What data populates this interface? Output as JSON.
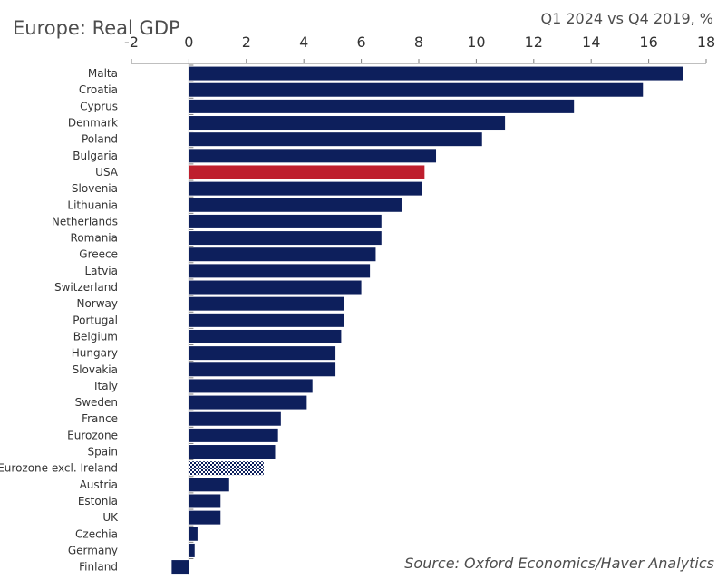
{
  "chart_data": {
    "type": "bar",
    "orientation": "horizontal",
    "title": "Europe: Real GDP",
    "subtitle": "Q1 2024 vs Q4 2019, %",
    "source": "Source: Oxford Economics/Haver Analytics",
    "xlim": [
      -2,
      18
    ],
    "xticks": [
      -2,
      0,
      2,
      4,
      6,
      8,
      10,
      12,
      14,
      16,
      18
    ],
    "xtick_labels": [
      "-2",
      "0",
      "2",
      "4",
      "6",
      "8",
      "10",
      "12",
      "14",
      "16",
      "18"
    ],
    "x_axis_position": "top",
    "grid": false,
    "categories": [
      "Malta",
      "Croatia",
      "Cyprus",
      "Denmark",
      "Poland",
      "Bulgaria",
      "USA",
      "Slovenia",
      "Lithuania",
      "Netherlands",
      "Romania",
      "Greece",
      "Latvia",
      "Switzerland",
      "Norway",
      "Portugal",
      "Belgium",
      "Hungary",
      "Slovakia",
      "Italy",
      "Sweden",
      "France",
      "Eurozone",
      "Spain",
      "Eurozone excl. Ireland",
      "Austria",
      "Estonia",
      "UK",
      "Czechia",
      "Germany",
      "Finland"
    ],
    "values": [
      17.2,
      15.8,
      13.4,
      11.0,
      10.2,
      8.6,
      8.2,
      8.1,
      7.4,
      6.7,
      6.7,
      6.5,
      6.3,
      6.0,
      5.4,
      5.4,
      5.3,
      5.1,
      5.1,
      4.3,
      4.1,
      3.2,
      3.1,
      3.0,
      2.6,
      1.4,
      1.1,
      1.1,
      0.3,
      0.2,
      -0.6
    ],
    "highlights": {
      "USA": "solid-red",
      "Eurozone excl. Ireland": "patterned"
    },
    "colors": {
      "bar": "#0d1f5c",
      "highlight": "#be1e2d",
      "pattern": "#0d1f5c",
      "axis": "#7f7f7f"
    }
  }
}
